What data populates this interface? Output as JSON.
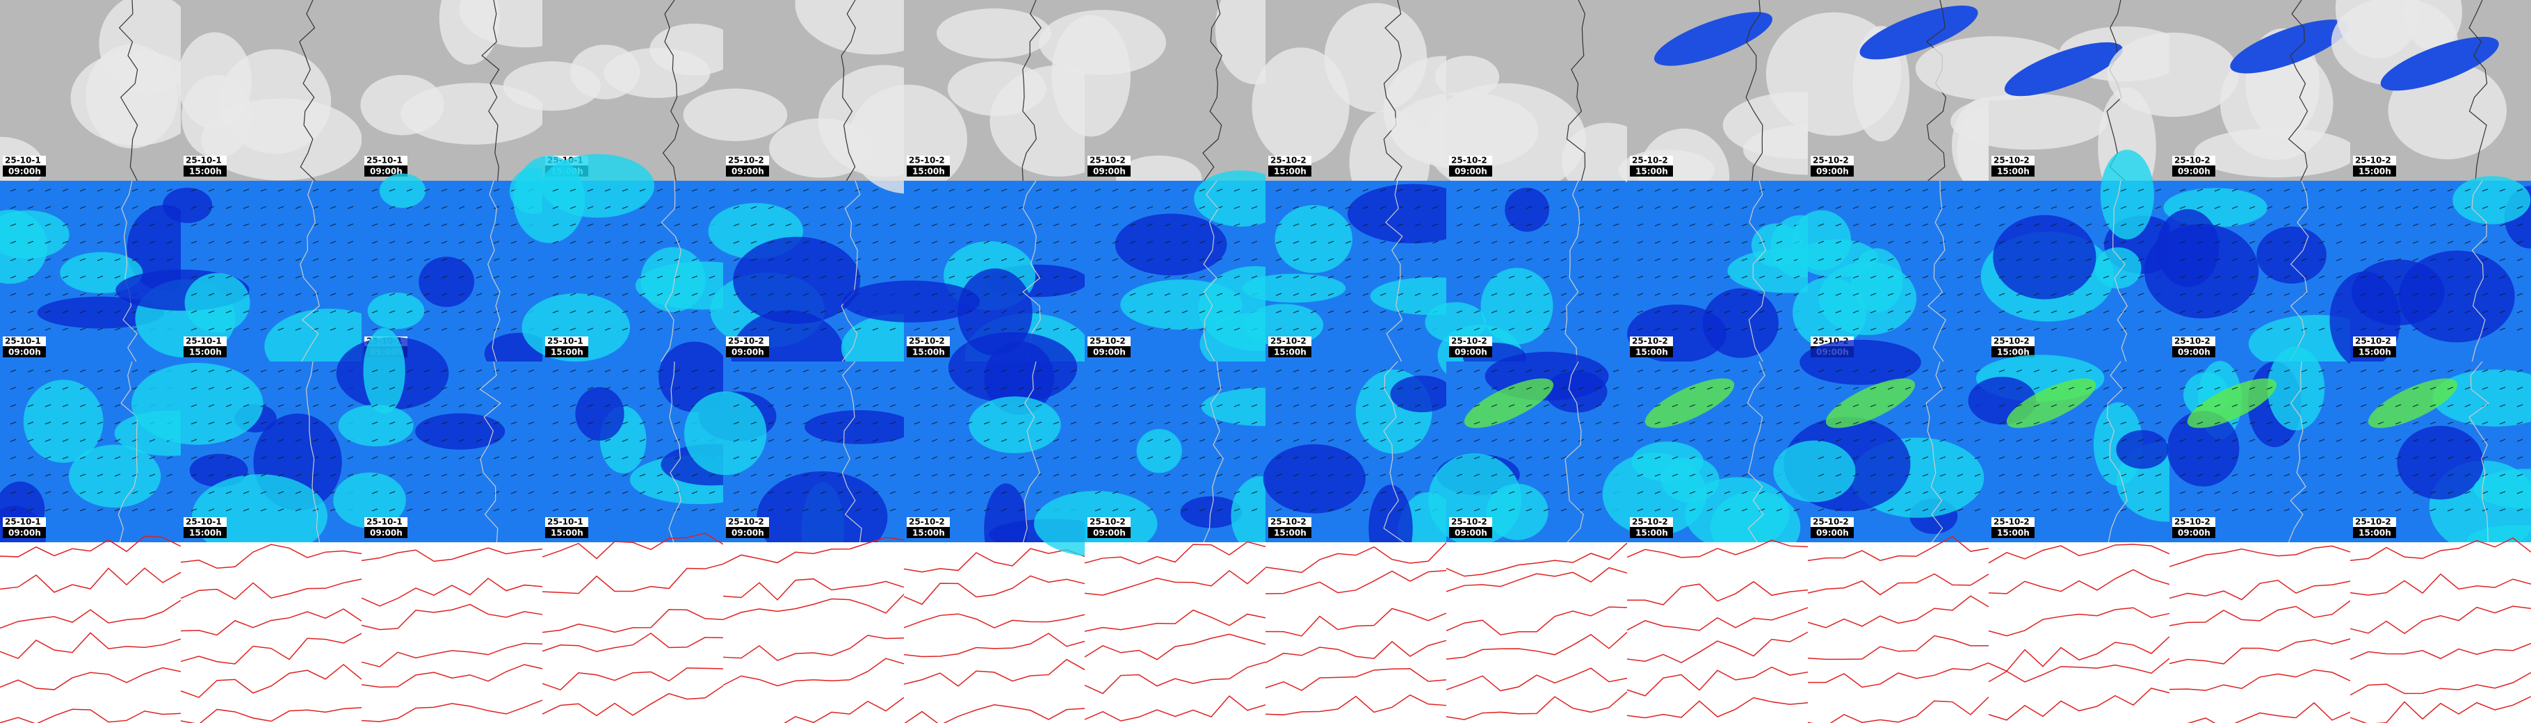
{
  "columns": [
    {
      "date": "25-10-1",
      "time": "09:00h"
    },
    {
      "date": "25-10-1",
      "time": "15:00h"
    },
    {
      "date": "25-10-1",
      "time": "09:00h"
    },
    {
      "date": "25-10-1",
      "time": "15:00h"
    },
    {
      "date": "25-10-2",
      "time": "09:00h"
    },
    {
      "date": "25-10-2",
      "time": "15:00h"
    },
    {
      "date": "25-10-2",
      "time": "09:00h"
    },
    {
      "date": "25-10-2",
      "time": "15:00h"
    },
    {
      "date": "25-10-2",
      "time": "09:00h"
    },
    {
      "date": "25-10-2",
      "time": "15:00h"
    },
    {
      "date": "25-10-2",
      "time": "09:00h"
    },
    {
      "date": "25-10-2",
      "time": "15:00h"
    },
    {
      "date": "25-10-2",
      "time": "09:00h"
    },
    {
      "date": "25-10-2",
      "time": "15:00h"
    }
  ]
}
